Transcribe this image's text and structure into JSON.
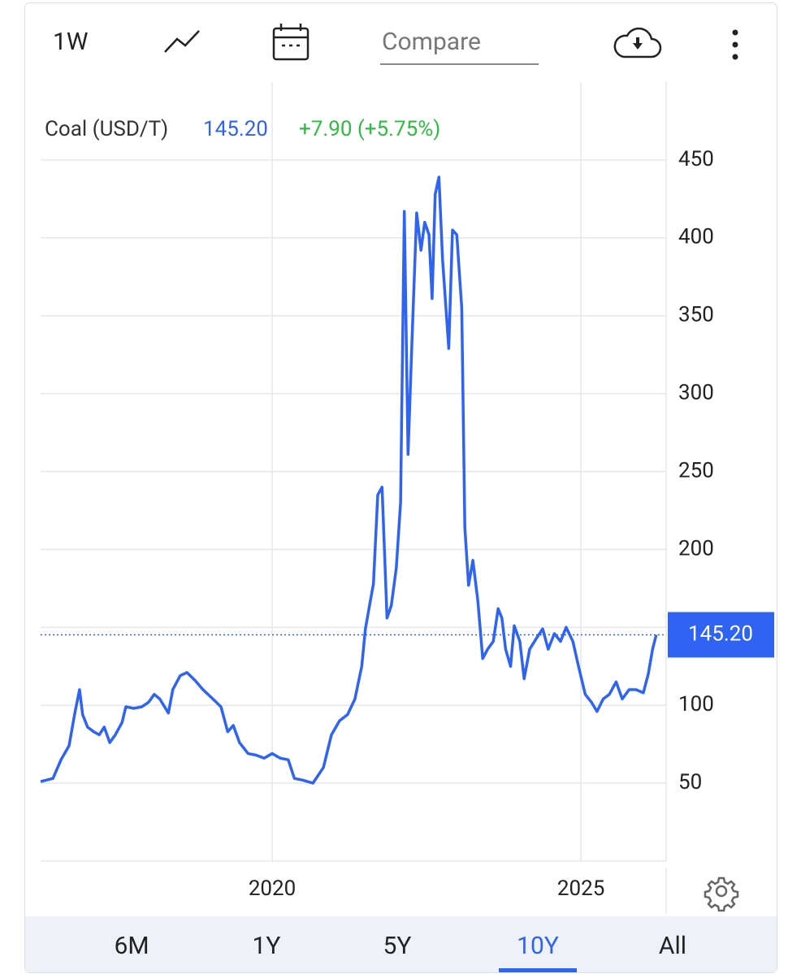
{
  "toolbar": {
    "interval": "1W",
    "compare": "Compare"
  },
  "chart_data": {
    "type": "line",
    "series": [
      {
        "name": "Coal (USD/T)",
        "color": "#2f63f2",
        "values": [
          51,
          53,
          65,
          74,
          94,
          110,
          94,
          86,
          83,
          81,
          86,
          76,
          81,
          89,
          99,
          98,
          99,
          102,
          107,
          104,
          95,
          110,
          119,
          121,
          116,
          110,
          104,
          99,
          83,
          87,
          76,
          69,
          68,
          66,
          69,
          66,
          65,
          53,
          52,
          50,
          60,
          81,
          90,
          94,
          104,
          125,
          149,
          167,
          178,
          235,
          240,
          156,
          164,
          188,
          230,
          417,
          261,
          329,
          416,
          392,
          410,
          402,
          361,
          428,
          439,
          386,
          329,
          405,
          402,
          355,
          214,
          177,
          193,
          167,
          130,
          136,
          141,
          162,
          156,
          136,
          125,
          151,
          141,
          117,
          136,
          143,
          149,
          136,
          146,
          141,
          150,
          141,
          125,
          107,
          102,
          96,
          104,
          107,
          115,
          104,
          110,
          110,
          108,
          120,
          136,
          145.2
        ]
      }
    ],
    "x": [
      2016.25,
      2016.45,
      2016.58,
      2016.71,
      2016.8,
      2016.88,
      2016.93,
      2017.01,
      2017.11,
      2017.2,
      2017.28,
      2017.37,
      2017.46,
      2017.57,
      2017.63,
      2017.76,
      2017.89,
      2018.0,
      2018.09,
      2018.18,
      2018.32,
      2018.39,
      2018.51,
      2018.62,
      2018.75,
      2018.88,
      2019.04,
      2019.17,
      2019.28,
      2019.37,
      2019.47,
      2019.61,
      2019.74,
      2019.87,
      2020.0,
      2020.13,
      2020.26,
      2020.36,
      2020.49,
      2020.66,
      2020.83,
      2020.96,
      2021.09,
      2021.22,
      2021.34,
      2021.45,
      2021.51,
      2021.59,
      2021.64,
      2021.71,
      2021.78,
      2021.86,
      2021.93,
      2022.01,
      2022.08,
      2022.14,
      2022.2,
      2022.26,
      2022.34,
      2022.41,
      2022.47,
      2022.54,
      2022.59,
      2022.64,
      2022.7,
      2022.76,
      2022.86,
      2022.92,
      2022.99,
      2023.07,
      2023.12,
      2023.18,
      2023.25,
      2023.33,
      2023.41,
      2023.49,
      2023.58,
      2023.66,
      2023.72,
      2023.78,
      2023.86,
      2023.92,
      2024.01,
      2024.08,
      2024.17,
      2024.28,
      2024.38,
      2024.47,
      2024.57,
      2024.67,
      2024.76,
      2024.87,
      2024.96,
      2025.07,
      2025.17,
      2025.26,
      2025.36,
      2025.46,
      2025.57,
      2025.67,
      2025.78,
      2025.89,
      2026.01,
      2026.09,
      2026.16,
      2026.22
    ],
    "xlim": [
      2016.25,
      2026.38
    ],
    "xticks": [
      2020,
      2025
    ],
    "ylim": [
      0,
      500
    ],
    "yticks": [
      50,
      100,
      150,
      200,
      250,
      300,
      350,
      400,
      450
    ],
    "grid": true,
    "last_price": {
      "value": 145.2,
      "label": "145.20"
    },
    "change": "+7.90 (+5.75%)"
  },
  "range_selector": {
    "options": [
      "6M",
      "1Y",
      "5Y",
      "10Y",
      "All"
    ],
    "selected": "10Y"
  }
}
